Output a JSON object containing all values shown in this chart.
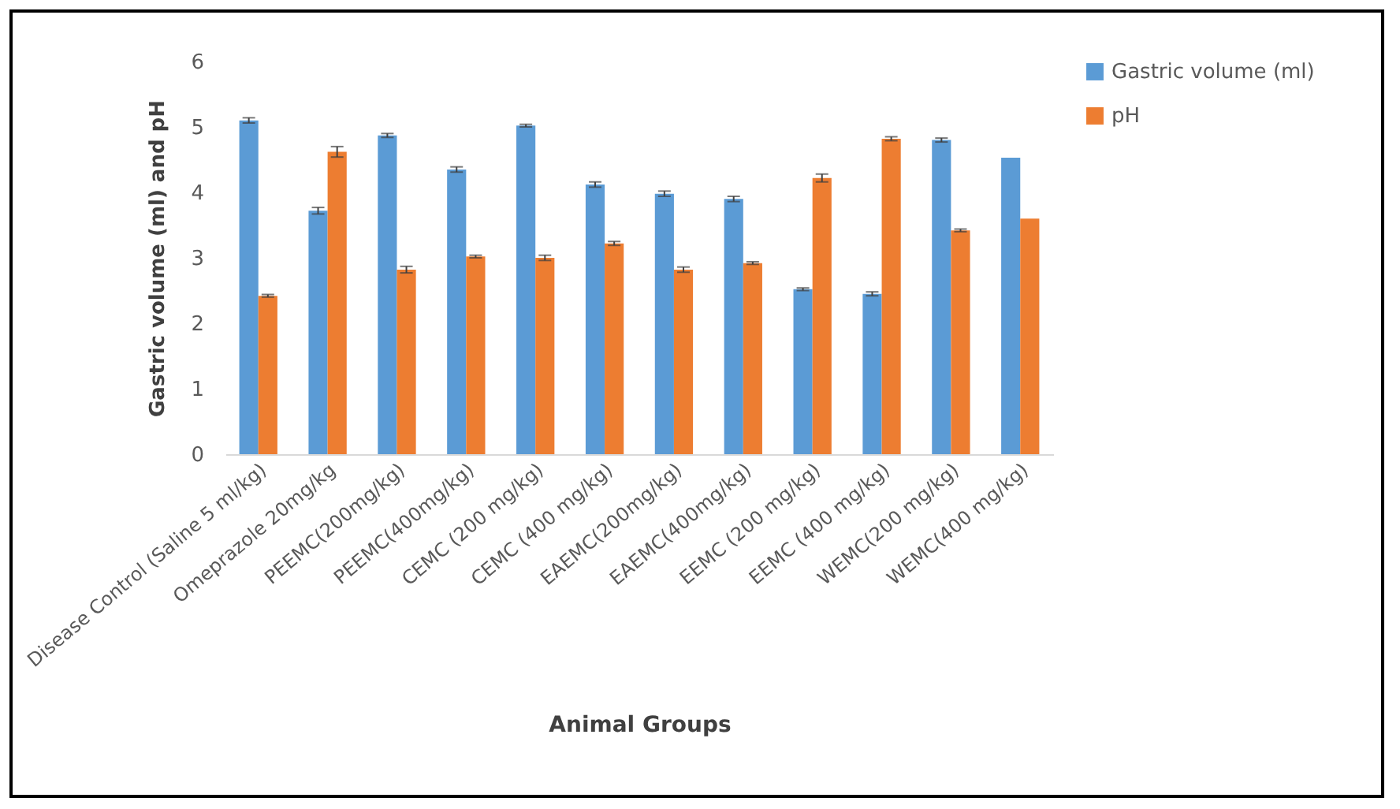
{
  "chart_data": {
    "type": "bar",
    "xlabel": "Animal Groups",
    "ylabel": "Gastric volume (ml) and pH",
    "categories": [
      "Disease Control (Saline 5 ml/kg)",
      "Omeprazole 20mg/kg",
      "PEEMC(200mg/kg)",
      "PEEMC(400mg/kg)",
      "CEMC (200 mg/kg)",
      "CEMC (400 mg/kg)",
      "EAEMC(200mg/kg)",
      "EAEMC(400mg/kg)",
      "EEMC (200 mg/kg)",
      "EEMC (400 mg/kg)",
      "WEMC(200 mg/kg)",
      "WEMC(400 mg/kg)"
    ],
    "series": [
      {
        "name": "Gastric volume (ml)",
        "color": "#5b9bd5",
        "values": [
          5.1,
          3.72,
          4.87,
          4.35,
          5.02,
          4.12,
          3.98,
          3.9,
          2.52,
          2.45,
          4.8,
          4.53
        ],
        "errors": [
          0.04,
          0.05,
          0.03,
          0.04,
          0.02,
          0.04,
          0.04,
          0.04,
          0.02,
          0.03,
          0.03,
          null
        ]
      },
      {
        "name": "pH",
        "color": "#ed7d31",
        "values": [
          2.42,
          4.62,
          2.82,
          3.02,
          3.0,
          3.22,
          2.82,
          2.92,
          4.22,
          4.82,
          3.42,
          3.6
        ],
        "errors": [
          0.02,
          0.08,
          0.05,
          0.02,
          0.04,
          0.03,
          0.04,
          0.02,
          0.06,
          0.03,
          0.02,
          null
        ]
      }
    ],
    "ylim": [
      0,
      6
    ],
    "yticks": [
      0,
      1,
      2,
      3,
      4,
      5,
      6
    ],
    "grid": false,
    "legend": "right"
  }
}
